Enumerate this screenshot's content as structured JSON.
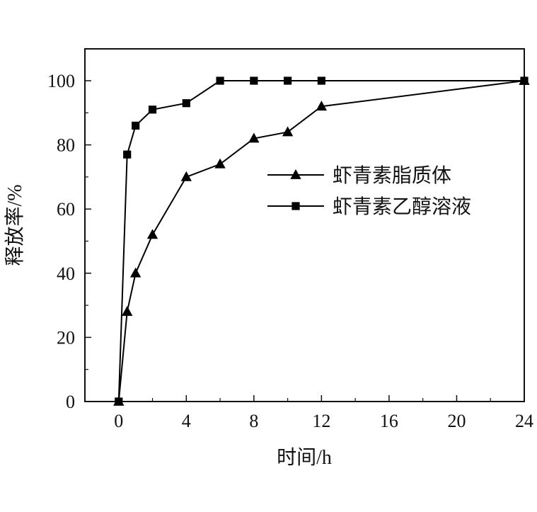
{
  "chart_data": {
    "type": "line",
    "xlabel": "时间/h",
    "ylabel": "释放率/%",
    "xlim": [
      -2,
      24
    ],
    "ylim": [
      0,
      100
    ],
    "x_ticks": [
      0,
      4,
      8,
      12,
      16,
      20,
      24
    ],
    "y_ticks": [
      0,
      20,
      40,
      60,
      80,
      100
    ],
    "grid": false,
    "legend_position": "center-right",
    "series": [
      {
        "name": "虾青素脂质体",
        "marker": "triangle",
        "color": "#000000",
        "x": [
          0,
          0.5,
          1,
          2,
          4,
          6,
          8,
          10,
          12,
          24
        ],
        "y": [
          0,
          28,
          40,
          52,
          70,
          74,
          82,
          84,
          92,
          100
        ]
      },
      {
        "name": "虾青素乙醇溶液",
        "marker": "square",
        "color": "#000000",
        "x": [
          0,
          0.5,
          1,
          2,
          4,
          6,
          8,
          10,
          12,
          24
        ],
        "y": [
          0,
          77,
          86,
          91,
          93,
          100,
          100,
          100,
          100,
          100
        ]
      }
    ]
  }
}
